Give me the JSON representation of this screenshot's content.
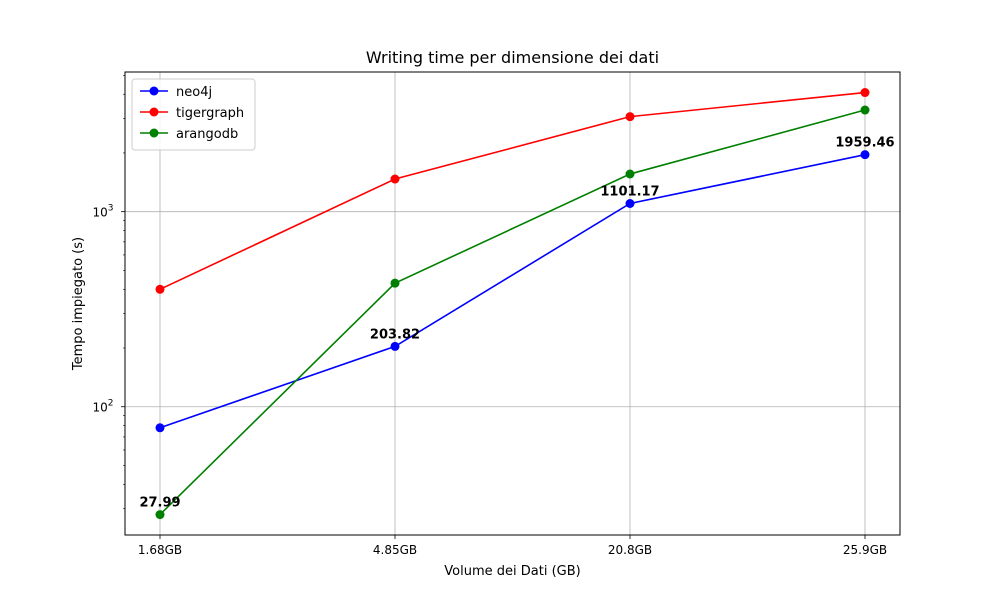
{
  "chart_data": {
    "type": "line",
    "title": "Writing time per dimensione dei dati",
    "xlabel": "Volume dei Dati (GB)",
    "ylabel": "Tempo impiegato (s)",
    "categories": [
      "1.68GB",
      "4.85GB",
      "20.8GB",
      "25.9GB"
    ],
    "y_scale": "log",
    "ylim": [
      22,
      5200
    ],
    "y_ticks": [
      {
        "value": 100,
        "base": "10",
        "exp": "2"
      },
      {
        "value": 1000,
        "base": "10",
        "exp": "3"
      }
    ],
    "grid": true,
    "legend_position": "top-left",
    "series": [
      {
        "name": "neo4j",
        "color": "#0000ff",
        "values": [
          78,
          203.82,
          1101.17,
          1959.46
        ]
      },
      {
        "name": "tigergraph",
        "color": "#ff0000",
        "values": [
          400,
          1470,
          3070,
          4080
        ]
      },
      {
        "name": "arangodb",
        "color": "#008000",
        "values": [
          27.99,
          430,
          1560,
          3320
        ]
      }
    ],
    "annotations": [
      {
        "category": "1.68GB",
        "value": 27.99,
        "text": "27.99"
      },
      {
        "category": "4.85GB",
        "value": 203.82,
        "text": "203.82"
      },
      {
        "category": "20.8GB",
        "value": 1101.17,
        "text": "1101.17"
      },
      {
        "category": "25.9GB",
        "value": 1959.46,
        "text": "1959.46"
      }
    ]
  }
}
